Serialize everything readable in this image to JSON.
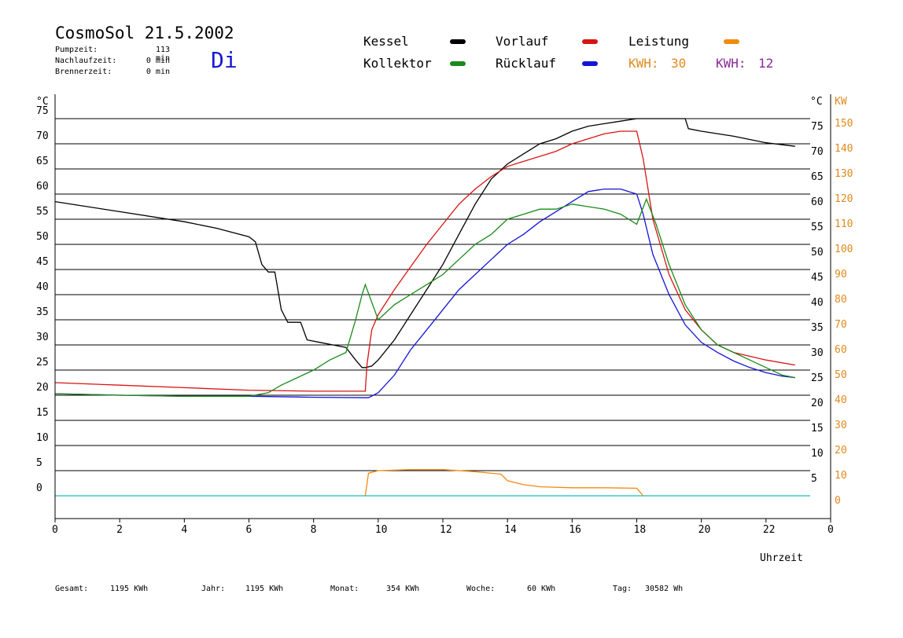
{
  "header": {
    "title": "CosmoSol 21.5.2002",
    "weekday": "Di",
    "stats": [
      {
        "label": "Pumpzeit:",
        "value": "113 min"
      },
      {
        "label": "Nachlaufzeit:",
        "value": "0 min"
      },
      {
        "label": "Brennerzeit:",
        "value": "0 min"
      }
    ]
  },
  "legend": {
    "kessel": {
      "label": "Kessel",
      "color": "#000000"
    },
    "vorlauf": {
      "label": "Vorlauf",
      "color": "#d81414"
    },
    "leistung": {
      "label": "Leistung",
      "color": "#f28a10"
    },
    "kollektor": {
      "label": "Kollektor",
      "color": "#1a8a1a"
    },
    "ruecklauf": {
      "label": "Rücklauf",
      "color": "#1414d8"
    },
    "kwh1": {
      "label": "KWH:",
      "value": "30",
      "color": "#e08a20"
    },
    "kwh2": {
      "label": "KWH:",
      "value": "12",
      "color": "#8a2a9a"
    }
  },
  "footer": {
    "gesamt": {
      "label": "Gesamt:",
      "value": "1195 KWh"
    },
    "jahr": {
      "label": "Jahr:",
      "value": "1195 KWh"
    },
    "monat": {
      "label": "Monat:",
      "value": "354 KWh"
    },
    "woche": {
      "label": "Woche:",
      "value": "60 KWh"
    },
    "tag": {
      "label": "Tag:",
      "value": "30582 Wh"
    }
  },
  "chart_data": {
    "type": "line",
    "xlabel": "Uhrzeit",
    "ylabel_left": "°C",
    "ylabel_right_c": "°C",
    "ylabel_right_kw": "KW",
    "xlim": [
      0,
      24
    ],
    "ylim": [
      -5,
      77.5
    ],
    "x_ticks": [
      "0",
      "2",
      "4",
      "6",
      "8",
      "10",
      "12",
      "14",
      "16",
      "18",
      "20",
      "22",
      "0"
    ],
    "left_ticks": [
      0,
      5,
      10,
      15,
      20,
      25,
      30,
      35,
      40,
      45,
      50,
      55,
      60,
      65,
      70,
      75
    ],
    "right_ticks_c": [
      5,
      10,
      15,
      20,
      25,
      30,
      35,
      40,
      45,
      50,
      55,
      60,
      65,
      70,
      75
    ],
    "right_ticks_kw": [
      0,
      10,
      20,
      30,
      40,
      50,
      60,
      70,
      80,
      90,
      100,
      110,
      120,
      130,
      140,
      150
    ],
    "grid": true,
    "legend_position": "top",
    "series": [
      {
        "name": "Kessel",
        "color": "#000000",
        "x": [
          0,
          2,
          4,
          5,
          6,
          6.2,
          6.4,
          6.6,
          6.8,
          7,
          7.2,
          7.6,
          7.8,
          8.2,
          8.6,
          9,
          9.3,
          9.5,
          9.6,
          9.8,
          10,
          10.5,
          11,
          11.5,
          12,
          12.5,
          13,
          13.5,
          14,
          14.5,
          15,
          15.5,
          16,
          16.5,
          17,
          17.5,
          18,
          18.5,
          19,
          19.5,
          19.6,
          20,
          21,
          22,
          22.9
        ],
        "y": [
          58.5,
          56.5,
          54.5,
          53.2,
          51.5,
          50.5,
          46,
          44.5,
          44.5,
          37,
          34.5,
          34.5,
          31,
          30.5,
          30,
          29.5,
          27,
          25.5,
          25.5,
          25.8,
          27,
          31,
          36,
          41,
          46,
          52,
          58,
          63,
          66,
          68,
          70,
          71,
          72.5,
          73.5,
          74,
          74.5,
          75,
          75,
          75,
          75,
          73,
          72.5,
          71.5,
          70.2,
          69.5
        ]
      },
      {
        "name": "Vorlauf",
        "color": "#d81414",
        "x": [
          0,
          2,
          4,
          6,
          8,
          9.6,
          9.65,
          9.8,
          10,
          10.5,
          11,
          11.5,
          12,
          12.5,
          13,
          13.5,
          14,
          14.5,
          15,
          15.5,
          16,
          16.5,
          17,
          17.5,
          18,
          18.2,
          18.5,
          19,
          19.5,
          20,
          20.5,
          21,
          22,
          22.9
        ],
        "y": [
          22.5,
          22,
          21.5,
          21,
          20.8,
          20.8,
          26,
          33,
          36,
          41,
          45.5,
          50,
          54,
          58,
          61,
          63.5,
          65.5,
          66.5,
          67.5,
          68.5,
          70,
          71,
          72,
          72.5,
          72.5,
          67,
          55,
          44,
          37,
          33,
          30,
          28.5,
          27,
          26
        ]
      },
      {
        "name": "Rücklauf",
        "color": "#1414d8",
        "x": [
          0,
          2,
          4,
          6,
          8,
          9.6,
          9.7,
          10,
          10.5,
          11,
          11.5,
          12,
          12.5,
          13,
          13.5,
          14,
          14.5,
          15,
          15.5,
          16,
          16.5,
          17,
          17.5,
          18,
          18.2,
          18.5,
          19,
          19.5,
          20,
          20.5,
          21,
          21.5,
          22,
          22.5,
          22.9
        ],
        "y": [
          20.3,
          20,
          19.8,
          19.8,
          19.6,
          19.5,
          19.5,
          20.5,
          24,
          29,
          33,
          37,
          41,
          44,
          47,
          50,
          52,
          54.5,
          56.5,
          58.5,
          60.5,
          61,
          61,
          60,
          56,
          48,
          40,
          34,
          30.5,
          28.5,
          26.8,
          25.5,
          24.5,
          23.8,
          23.5
        ]
      },
      {
        "name": "Kollektor",
        "color": "#1a8a1a",
        "x": [
          0,
          2,
          4,
          6,
          6.6,
          7,
          7.5,
          8,
          8.5,
          9,
          9.3,
          9.5,
          9.6,
          10,
          10.5,
          11,
          11.5,
          12,
          12.5,
          13,
          13.5,
          14,
          14.5,
          15,
          15.5,
          16,
          16.5,
          17,
          17.5,
          18,
          18.3,
          18.6,
          19,
          19.5,
          20,
          20.5,
          21,
          21.5,
          22,
          22.5,
          22.9
        ],
        "y": [
          20.3,
          20,
          19.8,
          19.8,
          20.5,
          22,
          23.5,
          25,
          27,
          28.5,
          35,
          40,
          42,
          35,
          38,
          40,
          42,
          44,
          47,
          50,
          52,
          55,
          56,
          57,
          57,
          58,
          57.5,
          57,
          56,
          54,
          59,
          54,
          46,
          38,
          33,
          30,
          28.5,
          27,
          25.5,
          24,
          23.5
        ]
      },
      {
        "name": "Leistung",
        "color": "#f28a10",
        "x": [
          9.6,
          9.7,
          10,
          11,
          12,
          13,
          13.8,
          14,
          14.5,
          15,
          16,
          17,
          18,
          18.2
        ],
        "y": [
          0,
          4.5,
          5,
          5.2,
          5.2,
          4.8,
          4.3,
          3,
          2.2,
          1.8,
          1.6,
          1.6,
          1.5,
          0
        ]
      }
    ]
  }
}
